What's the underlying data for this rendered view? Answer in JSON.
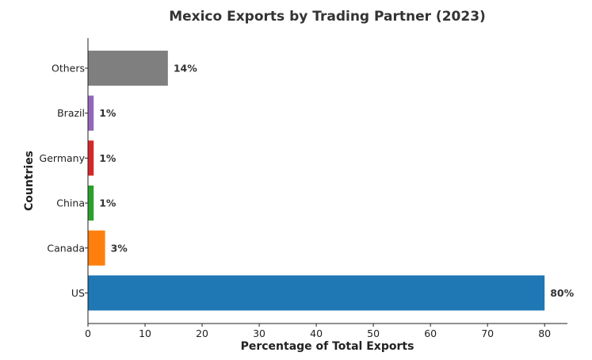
{
  "chart_data": {
    "type": "bar",
    "orientation": "horizontal",
    "title": "Mexico Exports by Trading Partner (2023)",
    "xlabel": "Percentage of Total Exports",
    "ylabel": "Countries",
    "categories": [
      "US",
      "Canada",
      "China",
      "Germany",
      "Brazil",
      "Others"
    ],
    "values": [
      80,
      3,
      1,
      1,
      1,
      14
    ],
    "data_labels": [
      "80%",
      "3%",
      "1%",
      "1%",
      "1%",
      "14%"
    ],
    "colors": [
      "#1f77b4",
      "#ff7f0e",
      "#2ca02c",
      "#d62728",
      "#9467bd",
      "#7f7f7f"
    ],
    "xlim": [
      0,
      84
    ],
    "xticks": [
      0,
      10,
      20,
      30,
      40,
      50,
      60,
      70,
      80
    ],
    "grid": false,
    "legend": "none"
  }
}
